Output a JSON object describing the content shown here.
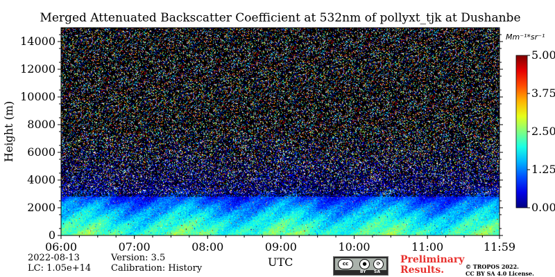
{
  "chart_data": {
    "type": "heatmap",
    "title": "Merged Attenuated Backscatter Coefficient at 532nm of pollyxt_tjk at Dushanbe",
    "xlabel": "UTC",
    "ylabel": "Height (m)",
    "xlim": [
      "06:00",
      "11:59"
    ],
    "ylim": [
      0,
      15000
    ],
    "x_ticks": [
      "06:00",
      "07:00",
      "08:00",
      "09:00",
      "10:00",
      "11:00",
      "11:59"
    ],
    "y_ticks": [
      0,
      2000,
      4000,
      6000,
      8000,
      10000,
      12000,
      14000
    ],
    "colorbar": {
      "unit": "Mm⁻¹*sr⁻¹",
      "ticks": [
        "0.00",
        "1.25",
        "2.50",
        "3.75",
        "5.00"
      ],
      "range": [
        0,
        5
      ],
      "colormap": "jet"
    },
    "profile_summary": [
      {
        "height_m": 0,
        "typical_value": 2.3
      },
      {
        "height_m": 800,
        "typical_value": 2.0
      },
      {
        "height_m": 2000,
        "typical_value": 1.35
      },
      {
        "height_m": 3500,
        "typical_value": 0.35
      },
      {
        "height_m": 7000,
        "typical_value": 0.2
      },
      {
        "height_m": 15000,
        "typical_value": 0.1
      }
    ],
    "grid": false
  },
  "meta": {
    "date": "2022-08-13",
    "version": "Version: 3.5",
    "lc": "LC: 1.05e+14",
    "calibration": "Calibration: History"
  },
  "license": {
    "cc_label": "cc",
    "by": "BY",
    "sa": "SA",
    "preliminary_line1": "Preliminary",
    "preliminary_line2": "Results.",
    "copyright": "© TROPOS 2022.",
    "license_text": "CC BY SA 4.0 License."
  },
  "colors": {
    "preliminary": "#e8302d"
  }
}
